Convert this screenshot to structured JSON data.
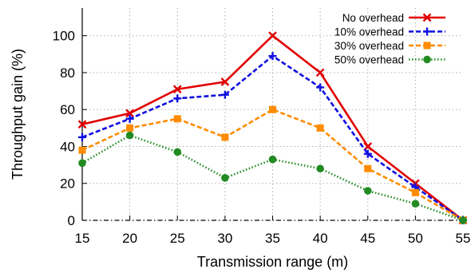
{
  "chart_data": {
    "type": "line",
    "title": "",
    "xlabel": "Transmission range (m)",
    "ylabel": "Throughput gain (%)",
    "x": [
      15,
      20,
      25,
      30,
      35,
      40,
      45,
      50,
      55
    ],
    "xlim": [
      15,
      55
    ],
    "ylim": [
      0,
      115
    ],
    "xticks": [
      15,
      20,
      25,
      30,
      35,
      40,
      45,
      50,
      55
    ],
    "yticks": [
      0,
      20,
      40,
      60,
      80,
      100
    ],
    "grid": true,
    "legend_position": "top-right",
    "series": [
      {
        "name": "No overhead",
        "values": [
          52,
          58,
          71,
          75,
          100,
          80,
          40,
          20,
          0
        ],
        "color": "#e00000",
        "dash": "solid",
        "marker": "x"
      },
      {
        "name": "10% overhead",
        "values": [
          45,
          55,
          66,
          68,
          89,
          72,
          36,
          18,
          0
        ],
        "color": "#1010e0",
        "dash": "dashed",
        "marker": "plus"
      },
      {
        "name": "30% overhead",
        "values": [
          38,
          50,
          55,
          45,
          60,
          50,
          28,
          15,
          0
        ],
        "color": "#ff8c00",
        "dash": "dashed",
        "marker": "square"
      },
      {
        "name": "50% overhead",
        "values": [
          31,
          46,
          37,
          23,
          33,
          28,
          16,
          9,
          0
        ],
        "color": "#228b22",
        "dash": "dotted",
        "marker": "circle"
      }
    ]
  }
}
